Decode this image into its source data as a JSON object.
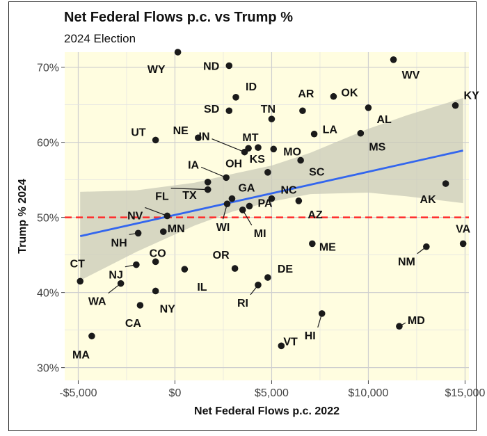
{
  "chart_data": {
    "type": "scatter",
    "title": "Net Federal Flows p.c. vs Trump %",
    "subtitle": "2024 Election",
    "xlabel": "Net Federal Flows p.c. 2022",
    "ylabel": "Trump % 2024",
    "xlim": [
      -5700,
      15200
    ],
    "ylim": [
      28.3,
      72.0
    ],
    "x_ticks": [
      {
        "value": -5000,
        "label": "-$5,000"
      },
      {
        "value": 0,
        "label": "$0"
      },
      {
        "value": 5000,
        "label": "$5,000"
      },
      {
        "value": 10000,
        "label": "$10,000"
      },
      {
        "value": 15000,
        "label": "$15,000"
      }
    ],
    "y_ticks": [
      {
        "value": 30,
        "label": "30%"
      },
      {
        "value": 40,
        "label": "40%"
      },
      {
        "value": 50,
        "label": "50%"
      },
      {
        "value": 60,
        "label": "60%"
      },
      {
        "value": 70,
        "label": "70%"
      }
    ],
    "grid": true,
    "background_color": "#fffde0",
    "reference_line": {
      "y": 50,
      "color": "#ff2a2a",
      "style": "dashed"
    },
    "trend_line": {
      "color": "#3366ee",
      "x_range": [
        -4900,
        14900
      ],
      "y_start": 47.5,
      "y_end": 58.9
    },
    "confidence_band": {
      "color": "#c9c9b8",
      "x": [
        -4900,
        -2000,
        1000,
        3000,
        5000,
        7000,
        10000,
        12000,
        14900
      ],
      "lower": [
        41.6,
        45.4,
        48.9,
        50.8,
        52.1,
        53.1,
        53.3,
        52.8,
        51.9
      ],
      "upper": [
        53.4,
        53.6,
        54.6,
        55.8,
        56.9,
        58.6,
        61.8,
        63.6,
        65.9
      ]
    },
    "points": [
      {
        "state": "WY",
        "x": 150,
        "y": 72.0
      },
      {
        "state": "ND",
        "x": 2800,
        "y": 70.2
      },
      {
        "state": "WV",
        "x": 11300,
        "y": 71.0
      },
      {
        "state": "SD",
        "x": 2800,
        "y": 64.2
      },
      {
        "state": "ID",
        "x": 3150,
        "y": 66.0
      },
      {
        "state": "AR",
        "x": 6600,
        "y": 64.2
      },
      {
        "state": "OK",
        "x": 8200,
        "y": 66.1
      },
      {
        "state": "KY",
        "x": 14500,
        "y": 64.9
      },
      {
        "state": "TN",
        "x": 5000,
        "y": 63.1
      },
      {
        "state": "AL",
        "x": 10000,
        "y": 64.6
      },
      {
        "state": "UT",
        "x": -1000,
        "y": 60.3
      },
      {
        "state": "NE",
        "x": 1200,
        "y": 60.6
      },
      {
        "state": "LA",
        "x": 7200,
        "y": 61.1
      },
      {
        "state": "MS",
        "x": 9600,
        "y": 61.2
      },
      {
        "state": "IN",
        "x": 3600,
        "y": 58.7
      },
      {
        "state": "MT",
        "x": 4300,
        "y": 59.3
      },
      {
        "state": "OH",
        "x": 3800,
        "y": 59.2
      },
      {
        "state": "MO",
        "x": 5100,
        "y": 59.1
      },
      {
        "state": "SC",
        "x": 6500,
        "y": 57.6
      },
      {
        "state": "IA",
        "x": 2650,
        "y": 55.3
      },
      {
        "state": "KS",
        "x": 4800,
        "y": 56.0
      },
      {
        "state": "TX",
        "x": 1700,
        "y": 54.7
      },
      {
        "state": "AK",
        "x": 14000,
        "y": 54.5
      },
      {
        "state": "FL",
        "x": 1700,
        "y": 53.7
      },
      {
        "state": "GA",
        "x": 2950,
        "y": 52.5
      },
      {
        "state": "NC",
        "x": 5000,
        "y": 52.5
      },
      {
        "state": "AZ",
        "x": 6400,
        "y": 52.2
      },
      {
        "state": "WI",
        "x": 2700,
        "y": 51.8
      },
      {
        "state": "PA",
        "x": 3850,
        "y": 51.5
      },
      {
        "state": "MI",
        "x": 3500,
        "y": 51.0
      },
      {
        "state": "NV",
        "x": -400,
        "y": 50.2
      },
      {
        "state": "MN",
        "x": -600,
        "y": 48.1
      },
      {
        "state": "NH",
        "x": -1900,
        "y": 47.9
      },
      {
        "state": "ME",
        "x": 7100,
        "y": 46.5
      },
      {
        "state": "VA",
        "x": 14900,
        "y": 46.5
      },
      {
        "state": "NM",
        "x": 13000,
        "y": 46.1
      },
      {
        "state": "CO",
        "x": -1000,
        "y": 44.1
      },
      {
        "state": "NJ",
        "x": -2000,
        "y": 43.7
      },
      {
        "state": "OR",
        "x": 3100,
        "y": 43.2
      },
      {
        "state": "IL",
        "x": 500,
        "y": 43.1
      },
      {
        "state": "DE",
        "x": 4800,
        "y": 42.0
      },
      {
        "state": "CT",
        "x": -4900,
        "y": 41.5
      },
      {
        "state": "WA",
        "x": -2800,
        "y": 41.2
      },
      {
        "state": "RI",
        "x": 4300,
        "y": 41.0
      },
      {
        "state": "NY",
        "x": -1000,
        "y": 40.2
      },
      {
        "state": "CA",
        "x": -1800,
        "y": 38.3
      },
      {
        "state": "HI",
        "x": 7600,
        "y": 37.2
      },
      {
        "state": "MD",
        "x": 11600,
        "y": 35.5
      },
      {
        "state": "MA",
        "x": -4300,
        "y": 34.2
      },
      {
        "state": "VT",
        "x": 5500,
        "y": 32.9
      }
    ]
  }
}
